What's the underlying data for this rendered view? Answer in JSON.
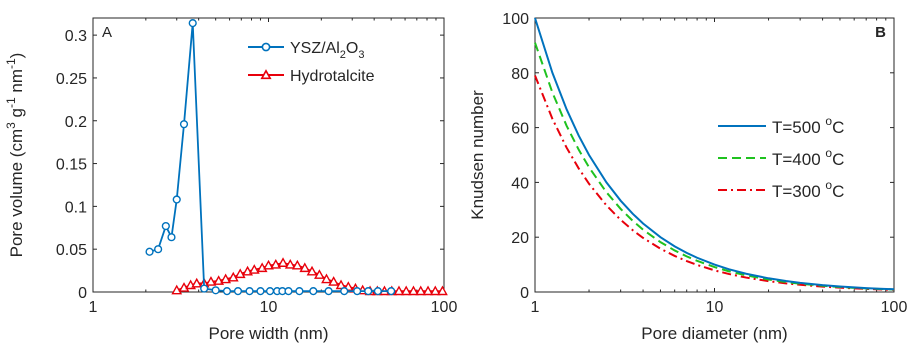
{
  "chart_data": [
    {
      "type": "scatter",
      "panel_label": "A",
      "xlabel": "Pore width (nm)",
      "ylabel_parts": {
        "main": "Pore volume (cm",
        "sup1": "3",
        "mid1": " g",
        "sup2": "-1",
        "mid2": " nm",
        "sup3": "-1",
        "end": ")"
      },
      "xscale": "log",
      "xlim": [
        1,
        100
      ],
      "ylim": [
        0,
        0.32
      ],
      "x_ticks": [
        1,
        10,
        100
      ],
      "x_tick_labels": [
        "1",
        "10",
        "100"
      ],
      "y_ticks": [
        0,
        0.05,
        0.1,
        0.15,
        0.2,
        0.25,
        0.3
      ],
      "y_tick_labels": [
        "0",
        "0.05",
        "0.1",
        "0.15",
        "0.2",
        "0.25",
        "0.3"
      ],
      "legend_placement": "top-right",
      "series": [
        {
          "name_parts": {
            "main": "YSZ/Al",
            "sub1": "2",
            "mid": "O",
            "sub2": "3"
          },
          "color": "#0072BD",
          "marker": "circle",
          "x": [
            2.1,
            2.35,
            2.6,
            2.8,
            3.0,
            3.3,
            3.7,
            4.3,
            5.0,
            5.8,
            6.7,
            7.8,
            9.0,
            10.2,
            11.2,
            12.0,
            13.0,
            15.0,
            18.0,
            22.0,
            27.0,
            32.0,
            37.0,
            42.0,
            50.0
          ],
          "y": [
            0.047,
            0.05,
            0.077,
            0.064,
            0.108,
            0.196,
            0.314,
            0.004,
            0.002,
            0.001,
            0.001,
            0.001,
            0.001,
            0.001,
            0.001,
            0.001,
            0.001,
            0.001,
            0.001,
            0.001,
            0.001,
            0.001,
            0.001,
            0.001,
            0.001
          ]
        },
        {
          "name": "Hydrotalcite",
          "color": "#E8000B",
          "marker": "triangle",
          "x": [
            3.0,
            3.3,
            3.6,
            3.9,
            4.3,
            4.7,
            5.2,
            5.7,
            6.3,
            6.9,
            7.6,
            8.3,
            9.2,
            10.0,
            11.0,
            12.1,
            13.3,
            14.6,
            16.1,
            17.7,
            19.5,
            21.4,
            23.5,
            25.9,
            28.5,
            31.3,
            34.4,
            37.9,
            41.7,
            45.8,
            50.4,
            55.4,
            60.9,
            67.0,
            73.7,
            81.1,
            89.2,
            98.0
          ],
          "y": [
            0.002,
            0.005,
            0.008,
            0.01,
            0.01,
            0.012,
            0.013,
            0.015,
            0.017,
            0.021,
            0.024,
            0.026,
            0.028,
            0.031,
            0.032,
            0.034,
            0.032,
            0.031,
            0.028,
            0.024,
            0.02,
            0.015,
            0.012,
            0.008,
            0.006,
            0.004,
            0.002,
            0.001,
            0.001,
            0.001,
            0.001,
            0.001,
            0.001,
            0.001,
            0.001,
            0.001,
            0.001,
            0.001
          ]
        }
      ]
    },
    {
      "type": "line",
      "panel_label": "B",
      "xlabel": "Pore diameter (nm)",
      "ylabel": "Knudsen number",
      "xscale": "log",
      "xlim": [
        1,
        100
      ],
      "ylim": [
        0,
        100
      ],
      "x_ticks": [
        1,
        10,
        100
      ],
      "x_tick_labels": [
        "1",
        "10",
        "100"
      ],
      "y_ticks": [
        0,
        20,
        40,
        60,
        80,
        100
      ],
      "y_tick_labels": [
        "0",
        "20",
        "40",
        "60",
        "80",
        "100"
      ],
      "legend_placement": "right",
      "x": [
        1,
        1.25,
        1.5,
        1.75,
        2,
        2.5,
        3,
        3.5,
        4,
        5,
        6,
        7,
        8,
        10,
        12,
        15,
        20,
        25,
        30,
        40,
        50,
        60,
        70,
        80,
        100
      ],
      "series": [
        {
          "name_parts": {
            "main": "T=500 ",
            "sup": "o",
            "end": "C"
          },
          "color": "#0072BD",
          "dash": "solid",
          "k": 100
        },
        {
          "name_parts": {
            "main": "T=400 ",
            "sup": "o",
            "end": "C"
          },
          "color": "#1FC21F",
          "dash": "dashed",
          "k": 91
        },
        {
          "name_parts": {
            "main": "T=300 ",
            "sup": "o",
            "end": "C"
          },
          "color": "#E8000B",
          "dash": "dashdot",
          "k": 79
        }
      ]
    }
  ]
}
